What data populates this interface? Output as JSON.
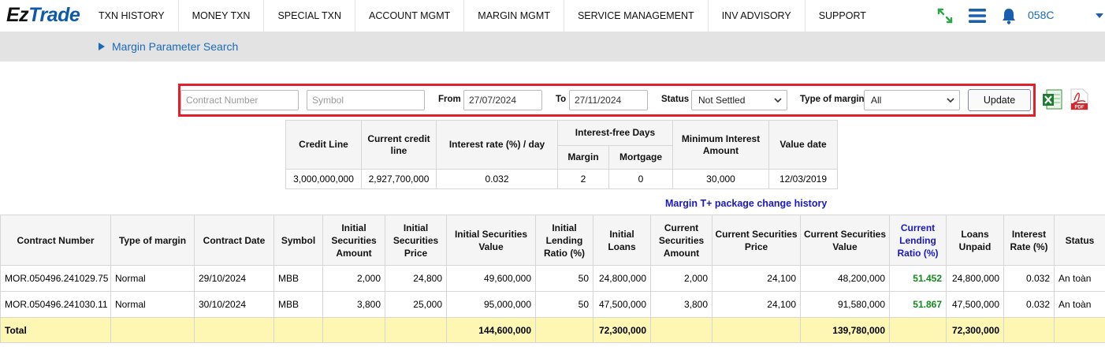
{
  "app": {
    "logo_part1": "Ez",
    "logo_part2": "Trade"
  },
  "nav": {
    "items": [
      "TXN HISTORY",
      "MONEY TXN",
      "SPECIAL TXN",
      "ACCOUNT MGMT",
      "MARGIN MGMT",
      "SERVICE MANAGEMENT",
      "INV ADVISORY",
      "SUPPORT"
    ],
    "account": "058C",
    "icons": [
      "expand-icon",
      "hamburger-icon",
      "bell-icon",
      "chevron-down-icon"
    ]
  },
  "breadcrumb": {
    "title": "Margin Parameter Search"
  },
  "filters": {
    "contract_placeholder": "Contract Number",
    "symbol_placeholder": "Symbol",
    "from_label": "From",
    "from_value": "27/07/2024",
    "to_label": "To",
    "to_value": "27/11/2024",
    "status_label": "Status",
    "status_value": "Not Settled",
    "type_label": "Type of margin",
    "type_value": "All",
    "update_label": "Update"
  },
  "credit_table": {
    "headers": {
      "credit_line": "Credit Line",
      "current_credit_line": "Current credit line",
      "interest_rate": "Interest rate (%) / day",
      "interest_free": "Interest-free Days",
      "margin": "Margin",
      "mortgage": "Mortgage",
      "minimum_interest": "Minimum Interest Amount",
      "value_date": "Value date"
    },
    "row": {
      "credit_line": "3,000,000,000",
      "current_credit_line": "2,927,700,000",
      "interest_rate": "0.032",
      "margin": "2",
      "mortgage": "0",
      "minimum_interest": "30,000",
      "value_date": "12/03/2019"
    }
  },
  "history_link": "Margin T+ package change history",
  "main_table": {
    "headers": [
      "Contract Number",
      "Type of margin",
      "Contract Date",
      "Symbol",
      "Initial Securities Amount",
      "Initial Securities Price",
      "Initial Securities Value",
      "Initial Lending Ratio (%)",
      "Initial Loans",
      "Current Securities Amount",
      "Current Securities Price",
      "Current Securities Value",
      "Current Lending Ratio (%)",
      "Loans Unpaid",
      "Interest Rate (%)",
      "Status"
    ],
    "rows": [
      [
        "MOR.050496.241029.75",
        "Normal",
        "29/10/2024",
        "MBB",
        "2,000",
        "24,800",
        "49,600,000",
        "50",
        "24,800,000",
        "2,000",
        "24,100",
        "48,200,000",
        "51.452",
        "24,800,000",
        "0.032",
        "An toàn"
      ],
      [
        "MOR.050496.241030.11",
        "Normal",
        "30/10/2024",
        "MBB",
        "3,800",
        "25,000",
        "95,000,000",
        "50",
        "47,500,000",
        "3,800",
        "24,100",
        "91,580,000",
        "51.867",
        "47,500,000",
        "0.032",
        "An toàn"
      ]
    ],
    "total": {
      "label": "Total",
      "initial_value": "144,600,000",
      "initial_loans": "72,300,000",
      "current_value": "139,780,000",
      "loans_unpaid": "72,300,000"
    }
  },
  "colors": {
    "accent": "#1a6ab8",
    "ratio_green": "#138a1c",
    "total_bg": "#fdf7b3",
    "filter_border": "#e0202a"
  }
}
